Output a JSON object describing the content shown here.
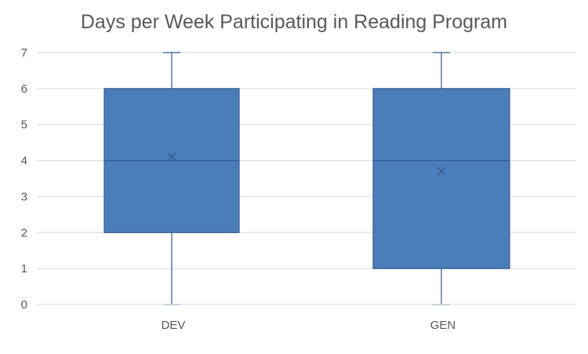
{
  "chart_data": {
    "type": "box",
    "title": "Days per Week Participating in Reading Program",
    "xlabel": "",
    "ylabel": "",
    "ylim": [
      0,
      7
    ],
    "yticks": [
      "0",
      "1",
      "2",
      "3",
      "4",
      "5",
      "6",
      "7"
    ],
    "grid": true,
    "legend": "none",
    "categories": [
      "DEV",
      "GEN"
    ],
    "boxes": [
      {
        "category": "DEV",
        "min": 0,
        "q1": 2,
        "median": 4,
        "q3": 6,
        "max": 7,
        "mean": 4.1
      },
      {
        "category": "GEN",
        "min": 0,
        "q1": 1,
        "median": 4,
        "q3": 6,
        "max": 7,
        "mean": 3.7
      }
    ],
    "colors": {
      "box_fill": "#4a7ebb",
      "box_edge": "#2f5a8c",
      "whisker": "#2f5a8c",
      "grid": "#d9d9d9",
      "axis_text": "#595959"
    }
  }
}
